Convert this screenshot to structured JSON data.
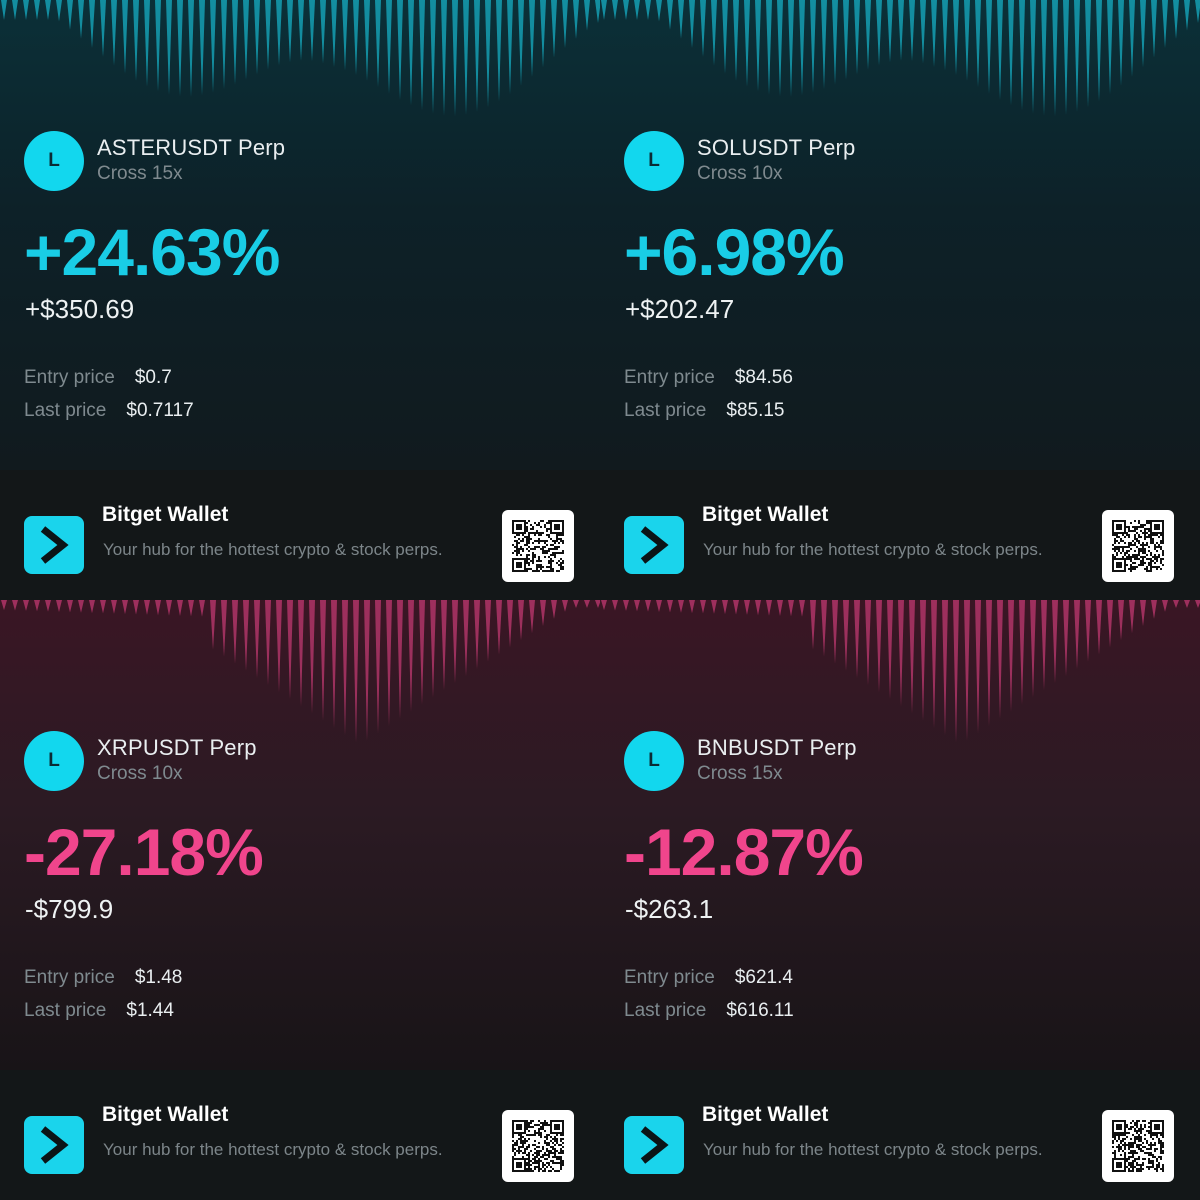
{
  "colors": {
    "positive": "#19cde6",
    "negative": "#f0458c",
    "brand_accent": "#1ad4ec"
  },
  "cards": [
    {
      "avatar_letter": "L",
      "pair": "ASTERUSDT Perp",
      "leverage": "Cross 15x",
      "pnl_percent": "+24.63%",
      "pnl_amount": "+$350.69",
      "entry_label": "Entry price",
      "entry_price": "$0.7",
      "last_label": "Last price",
      "last_price": "$0.7117",
      "direction": "positive",
      "footer": {
        "brand": "Bitget Wallet",
        "tagline": "Your hub for the hottest crypto & stock perps.",
        "logo_icon": "chevron-right-icon",
        "qr_icon": "qr-code-icon"
      }
    },
    {
      "avatar_letter": "L",
      "pair": "SOLUSDT Perp",
      "leverage": "Cross 10x",
      "pnl_percent": "+6.98%",
      "pnl_amount": "+$202.47",
      "entry_label": "Entry price",
      "entry_price": "$84.56",
      "last_label": "Last price",
      "last_price": "$85.15",
      "direction": "positive",
      "footer": {
        "brand": "Bitget Wallet",
        "tagline": "Your hub for the hottest crypto & stock perps.",
        "logo_icon": "chevron-right-icon",
        "qr_icon": "qr-code-icon"
      }
    },
    {
      "avatar_letter": "L",
      "pair": "XRPUSDT Perp",
      "leverage": "Cross 10x",
      "pnl_percent": "-27.18%",
      "pnl_amount": "-$799.9",
      "entry_label": "Entry price",
      "entry_price": "$1.48",
      "last_label": "Last price",
      "last_price": "$1.44",
      "direction": "negative",
      "footer": {
        "brand": "Bitget Wallet",
        "tagline": "Your hub for the hottest crypto & stock perps.",
        "logo_icon": "chevron-right-icon",
        "qr_icon": "qr-code-icon"
      }
    },
    {
      "avatar_letter": "L",
      "pair": "BNBUSDT Perp",
      "leverage": "Cross 15x",
      "pnl_percent": "-12.87%",
      "pnl_amount": "-$263.1",
      "entry_label": "Entry price",
      "entry_price": "$621.4",
      "last_label": "Last price",
      "last_price": "$616.11",
      "direction": "negative",
      "footer": {
        "brand": "Bitget Wallet",
        "tagline": "Your hub for the hottest crypto & stock perps.",
        "logo_icon": "chevron-right-icon",
        "qr_icon": "qr-code-icon"
      }
    }
  ]
}
